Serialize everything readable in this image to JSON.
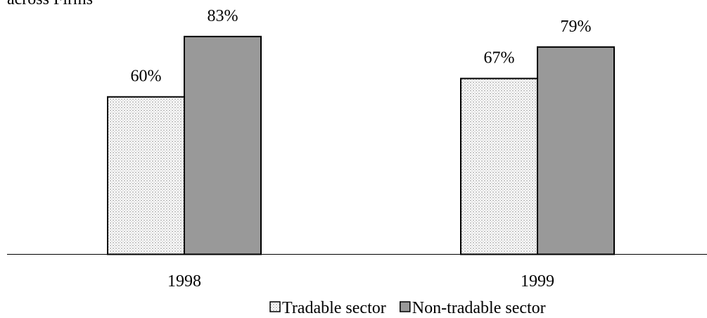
{
  "chart_data": {
    "type": "bar",
    "title": "across Firms",
    "categories": [
      "1998",
      "1999"
    ],
    "series": [
      {
        "name": "Tradable sector",
        "color": "#d9d9d9",
        "values": [
          60,
          67
        ],
        "value_labels": [
          "60%",
          "67%"
        ]
      },
      {
        "name": "Non-tradable sector",
        "color": "#999999",
        "values": [
          83,
          79
        ],
        "value_labels": [
          "83%",
          "79%"
        ]
      }
    ],
    "legend": "bottom"
  }
}
